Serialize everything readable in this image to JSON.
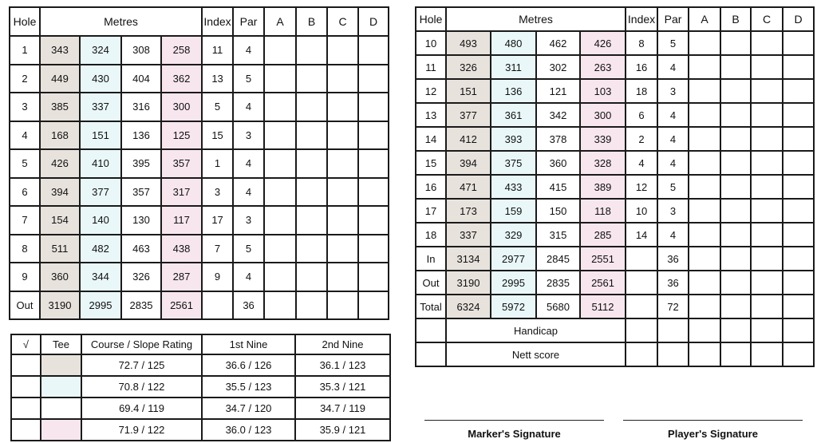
{
  "colors": {
    "tee_1": "#e7e2dc",
    "tee_2": "#e9f7f8",
    "tee_3": "#ffffff",
    "tee_4": "#f8e6ee"
  },
  "front_nine": {
    "headers": {
      "hole": "Hole",
      "metres": "Metres",
      "index": "Index",
      "par": "Par",
      "a": "A",
      "b": "B",
      "c": "C",
      "d": "D"
    },
    "rows": [
      {
        "hole": "1",
        "m": [
          "343",
          "324",
          "308",
          "258"
        ],
        "index": "11",
        "par": "4"
      },
      {
        "hole": "2",
        "m": [
          "449",
          "430",
          "404",
          "362"
        ],
        "index": "13",
        "par": "5"
      },
      {
        "hole": "3",
        "m": [
          "385",
          "337",
          "316",
          "300"
        ],
        "index": "5",
        "par": "4"
      },
      {
        "hole": "4",
        "m": [
          "168",
          "151",
          "136",
          "125"
        ],
        "index": "15",
        "par": "3"
      },
      {
        "hole": "5",
        "m": [
          "426",
          "410",
          "395",
          "357"
        ],
        "index": "1",
        "par": "4"
      },
      {
        "hole": "6",
        "m": [
          "394",
          "377",
          "357",
          "317"
        ],
        "index": "3",
        "par": "4"
      },
      {
        "hole": "7",
        "m": [
          "154",
          "140",
          "130",
          "117"
        ],
        "index": "17",
        "par": "3"
      },
      {
        "hole": "8",
        "m": [
          "511",
          "482",
          "463",
          "438"
        ],
        "index": "7",
        "par": "5"
      },
      {
        "hole": "9",
        "m": [
          "360",
          "344",
          "326",
          "287"
        ],
        "index": "9",
        "par": "4"
      },
      {
        "hole": "Out",
        "m": [
          "3190",
          "2995",
          "2835",
          "2561"
        ],
        "index": "",
        "par": "36"
      }
    ]
  },
  "back_nine": {
    "headers": {
      "hole": "Hole",
      "metres": "Metres",
      "index": "Index",
      "par": "Par",
      "a": "A",
      "b": "B",
      "c": "C",
      "d": "D"
    },
    "rows": [
      {
        "hole": "10",
        "m": [
          "493",
          "480",
          "462",
          "426"
        ],
        "index": "8",
        "par": "5"
      },
      {
        "hole": "11",
        "m": [
          "326",
          "311",
          "302",
          "263"
        ],
        "index": "16",
        "par": "4"
      },
      {
        "hole": "12",
        "m": [
          "151",
          "136",
          "121",
          "103"
        ],
        "index": "18",
        "par": "3"
      },
      {
        "hole": "13",
        "m": [
          "377",
          "361",
          "342",
          "300"
        ],
        "index": "6",
        "par": "4"
      },
      {
        "hole": "14",
        "m": [
          "412",
          "393",
          "378",
          "339"
        ],
        "index": "2",
        "par": "4"
      },
      {
        "hole": "15",
        "m": [
          "394",
          "375",
          "360",
          "328"
        ],
        "index": "4",
        "par": "4"
      },
      {
        "hole": "16",
        "m": [
          "471",
          "433",
          "415",
          "389"
        ],
        "index": "12",
        "par": "5"
      },
      {
        "hole": "17",
        "m": [
          "173",
          "159",
          "150",
          "118"
        ],
        "index": "10",
        "par": "3"
      },
      {
        "hole": "18",
        "m": [
          "337",
          "329",
          "315",
          "285"
        ],
        "index": "14",
        "par": "4"
      },
      {
        "hole": "In",
        "m": [
          "3134",
          "2977",
          "2845",
          "2551"
        ],
        "index": "",
        "par": "36"
      },
      {
        "hole": "Out",
        "m": [
          "3190",
          "2995",
          "2835",
          "2561"
        ],
        "index": "",
        "par": "36"
      },
      {
        "hole": "Total",
        "m": [
          "6324",
          "5972",
          "5680",
          "5112"
        ],
        "index": "",
        "par": "72"
      }
    ],
    "handicap_label": "Handicap",
    "nett_score_label": "Nett score"
  },
  "ratings": {
    "headers": {
      "check": "√",
      "tee": "Tee",
      "course_slope": "Course / Slope Rating",
      "first_nine": "1st Nine",
      "second_nine": "2nd Nine"
    },
    "rows": [
      {
        "course_slope": "72.7 / 125",
        "first_nine": "36.6 / 126",
        "second_nine": "36.1 / 123"
      },
      {
        "course_slope": "70.8 / 122",
        "first_nine": "35.5 / 123",
        "second_nine": "35.3 / 121"
      },
      {
        "course_slope": "69.4 / 119",
        "first_nine": "34.7 / 120",
        "second_nine": "34.7 / 119"
      },
      {
        "course_slope": "71.9 / 122",
        "first_nine": "36.0 / 123",
        "second_nine": "35.9 / 121"
      }
    ]
  },
  "signatures": {
    "marker": "Marker's Signature",
    "player": "Player's Signature"
  }
}
